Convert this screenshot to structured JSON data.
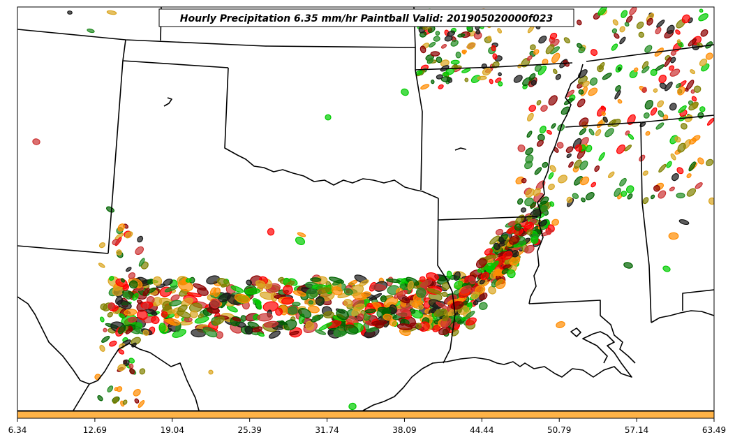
{
  "map": {
    "title": "Hourly Precipitation 6.35 mm/hr Paintball Valid: 201905020000f023",
    "region": "South-central United States",
    "colors": {
      "border": "#000000",
      "background": "#ffffff",
      "ensemble": [
        "#ff0000",
        "#ff8c00",
        "#8b0000",
        "#006400",
        "#00cc00",
        "#808000",
        "#1a1a1a",
        "#cc3333",
        "#daa520",
        "#228b22"
      ]
    }
  },
  "colorbar": {
    "color": "#ffb347",
    "ticks": [
      "6.34",
      "12.69",
      "19.04",
      "25.39",
      "31.74",
      "38.09",
      "44.44",
      "50.79",
      "57.14",
      "63.49"
    ]
  }
}
